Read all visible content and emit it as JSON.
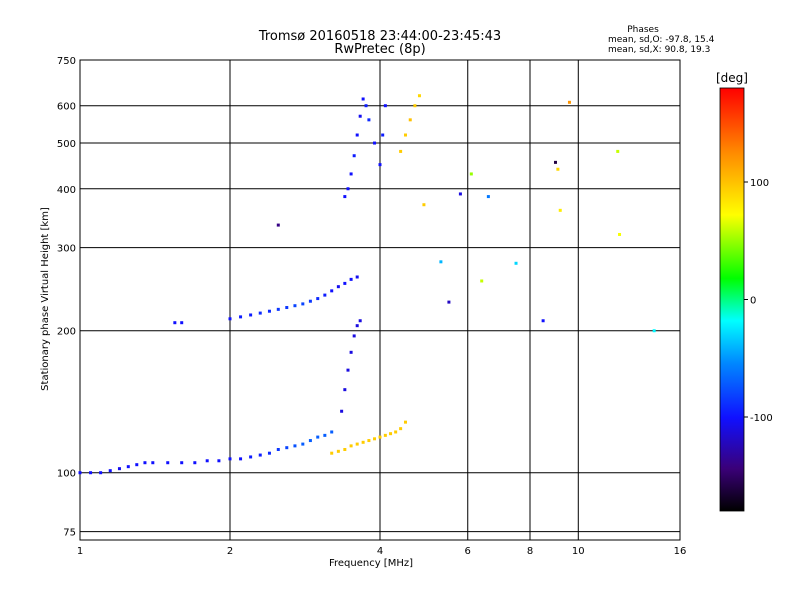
{
  "header": {
    "title_line1": "Tromsø 20160518 23:44:00-23:45:43",
    "title_line2": "RwPretec (8p)",
    "stats_title": "Phases",
    "stats_o": "mean, sd,O: -97.8, 15.4",
    "stats_x": "mean, sd,X:  90.8, 19.3"
  },
  "colorbar": {
    "label": "[deg]",
    "ticks": [
      "100",
      "0",
      "-100"
    ],
    "tick_values": [
      100,
      0,
      -100
    ],
    "range": [
      -180,
      180
    ]
  },
  "chart_data": {
    "type": "scatter",
    "xlabel": "Frequency [MHz]",
    "ylabel": "Stationary phase Virtual Height [km]",
    "xscale": "log",
    "yscale": "log",
    "xlim": [
      1,
      16
    ],
    "ylim": [
      72,
      750
    ],
    "x_ticks": [
      1,
      2,
      4,
      6,
      8,
      10,
      16
    ],
    "x_tick_labels": [
      "1",
      "2",
      "4",
      "6",
      "8",
      "10",
      "16"
    ],
    "y_ticks": [
      75,
      100,
      200,
      300,
      400,
      500,
      600,
      750
    ],
    "y_tick_labels": [
      "75",
      "100",
      "200",
      "300",
      "400",
      "500",
      "600",
      "750"
    ],
    "grid": true,
    "series": [
      {
        "x": [
          1.0,
          1.05,
          1.1,
          1.15,
          1.2,
          1.25,
          1.3,
          1.35,
          1.4,
          1.5,
          1.6,
          1.7,
          1.8,
          1.9,
          2.0,
          2.1,
          2.2,
          2.3,
          2.4,
          2.5,
          2.6,
          2.7,
          2.8,
          2.9,
          3.0,
          3.1,
          3.2
        ],
        "y": [
          100,
          100,
          100,
          101,
          102,
          103,
          104,
          105,
          105,
          105,
          105,
          105,
          106,
          106,
          107,
          107,
          108,
          109,
          110,
          112,
          113,
          114,
          115,
          117,
          119,
          120,
          122
        ],
        "phase": [
          -100,
          -100,
          -100,
          -100,
          -105,
          -100,
          -100,
          -100,
          -100,
          -100,
          -100,
          -100,
          -100,
          -100,
          -100,
          -100,
          -95,
          -95,
          -90,
          -85,
          -80,
          -75,
          -70,
          -70,
          -70,
          -70,
          -70
        ]
      },
      {
        "x": [
          3.2,
          3.3,
          3.4,
          3.5,
          3.6,
          3.7,
          3.8,
          3.9,
          4.0,
          4.1,
          4.2,
          4.3,
          4.4,
          4.5
        ],
        "y": [
          110,
          111,
          112,
          114,
          115,
          116,
          117,
          118,
          119,
          120,
          121,
          122,
          124,
          128
        ],
        "phase": [
          95,
          95,
          95,
          95,
          95,
          95,
          95,
          95,
          95,
          95,
          95,
          95,
          95,
          95
        ]
      },
      {
        "x": [
          3.35,
          3.4,
          3.45,
          3.5,
          3.55,
          3.6,
          3.65
        ],
        "y": [
          135,
          150,
          165,
          180,
          195,
          205,
          210
        ],
        "phase": [
          -110,
          -110,
          -110,
          -110,
          -110,
          -110,
          -110
        ]
      },
      {
        "x": [
          1.55,
          1.6,
          2.0,
          2.1,
          2.2,
          2.3,
          2.4,
          2.5,
          2.6,
          2.7,
          2.8,
          2.9,
          3.0,
          3.1,
          3.2,
          3.3,
          3.4,
          3.5,
          3.6
        ],
        "y": [
          208,
          208,
          212,
          214,
          216,
          218,
          220,
          222,
          224,
          226,
          228,
          231,
          234,
          238,
          243,
          248,
          252,
          257,
          260
        ],
        "phase": [
          -100,
          -100,
          -100,
          -95,
          -95,
          -90,
          -90,
          -85,
          -85,
          -80,
          -80,
          -85,
          -90,
          -95,
          -100,
          -105,
          -100,
          -100,
          -105
        ]
      },
      {
        "x": [
          3.4,
          3.45,
          3.5,
          3.55,
          3.6,
          3.65,
          3.7,
          3.75,
          3.8,
          3.9,
          4.0,
          4.05,
          4.1
        ],
        "y": [
          385,
          400,
          430,
          470,
          520,
          570,
          620,
          600,
          560,
          500,
          450,
          520,
          600
        ],
        "phase": [
          -100,
          -100,
          -100,
          -95,
          -100,
          -105,
          -100,
          -95,
          -90,
          -100,
          -100,
          -95,
          -100
        ]
      },
      {
        "x": [
          4.4,
          4.5,
          4.6,
          4.7,
          4.8
        ],
        "y": [
          480,
          520,
          560,
          600,
          630
        ],
        "phase": [
          95,
          95,
          100,
          95,
          90
        ]
      },
      {
        "x": [
          2.5,
          4.9,
          5.3,
          5.5,
          5.8,
          6.1,
          6.4,
          6.6,
          7.5,
          8.5,
          9.0,
          9.1,
          9.2,
          9.6,
          12.0,
          12.1,
          14.2
        ],
        "y": [
          335,
          370,
          280,
          230,
          390,
          430,
          255,
          385,
          278,
          210,
          455,
          440,
          360,
          610,
          480,
          320,
          200
        ],
        "phase": [
          -140,
          95,
          -40,
          -120,
          -110,
          50,
          60,
          -60,
          -30,
          -100,
          -160,
          90,
          80,
          120,
          60,
          70,
          -20
        ]
      }
    ]
  }
}
